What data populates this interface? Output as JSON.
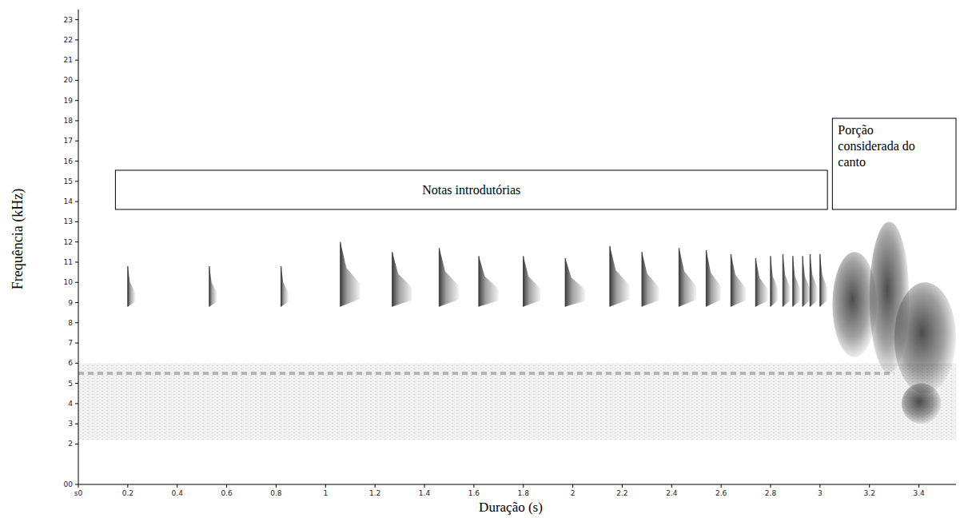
{
  "chart_data": {
    "type": "spectrogram",
    "x_label": "Duração (s)",
    "y_label": "Frequência (kHz)",
    "xlim": [
      0,
      3.55
    ],
    "ylim": [
      0,
      23.5
    ],
    "xticks": [
      {
        "value": 0,
        "label": "s0"
      },
      0.2,
      0.4,
      0.6,
      0.8,
      1,
      1.2,
      1.4,
      1.6,
      1.8,
      2,
      2.2,
      2.4,
      2.6,
      2.8,
      3,
      3.2,
      3.4
    ],
    "yticks": [
      {
        "value": 0,
        "label": "00"
      },
      2,
      3,
      4,
      5,
      6,
      7,
      8,
      9,
      10,
      11,
      12,
      13,
      14,
      15,
      16,
      17,
      18,
      19,
      20,
      21,
      22,
      23
    ],
    "color": "#2e2e2e",
    "notes": [
      {
        "time": 0.2,
        "low": 8.8,
        "high": 10.8,
        "duration": 0.03
      },
      {
        "time": 0.53,
        "low": 8.8,
        "high": 10.8,
        "duration": 0.03
      },
      {
        "time": 0.82,
        "low": 8.8,
        "high": 10.8,
        "duration": 0.03
      },
      {
        "time": 1.06,
        "low": 8.8,
        "high": 12,
        "duration": 0.08
      },
      {
        "time": 1.27,
        "low": 8.8,
        "high": 11.5,
        "duration": 0.08
      },
      {
        "time": 1.46,
        "low": 8.8,
        "high": 11.7,
        "duration": 0.08
      },
      {
        "time": 1.62,
        "low": 8.8,
        "high": 11.3,
        "duration": 0.08
      },
      {
        "time": 1.8,
        "low": 8.8,
        "high": 11.3,
        "duration": 0.07
      },
      {
        "time": 1.97,
        "low": 8.8,
        "high": 11.2,
        "duration": 0.08
      },
      {
        "time": 2.15,
        "low": 8.8,
        "high": 11.8,
        "duration": 0.08
      },
      {
        "time": 2.28,
        "low": 8.8,
        "high": 11.5,
        "duration": 0.07
      },
      {
        "time": 2.43,
        "low": 8.8,
        "high": 11.7,
        "duration": 0.07
      },
      {
        "time": 2.54,
        "low": 8.8,
        "high": 11.6,
        "duration": 0.06
      },
      {
        "time": 2.64,
        "low": 8.8,
        "high": 11.4,
        "duration": 0.06
      },
      {
        "time": 2.74,
        "low": 8.8,
        "high": 11.2,
        "duration": 0.05
      },
      {
        "time": 2.8,
        "low": 8.8,
        "high": 11.3,
        "duration": 0.03
      },
      {
        "time": 2.85,
        "low": 8.8,
        "high": 11.4,
        "duration": 0.03
      },
      {
        "time": 2.89,
        "low": 8.8,
        "high": 11.3,
        "duration": 0.03
      },
      {
        "time": 2.93,
        "low": 8.8,
        "high": 11.3,
        "duration": 0.03
      },
      {
        "time": 2.96,
        "low": 8.8,
        "high": 11.4,
        "duration": 0.03
      },
      {
        "time": 3,
        "low": 8.8,
        "high": 11.4,
        "duration": 0.03
      }
    ],
    "song_elements": [
      {
        "start": 3.05,
        "end": 3.23,
        "low": 6.3,
        "high": 11.5
      },
      {
        "start": 3.2,
        "end": 3.36,
        "low": 5.5,
        "high": 13
      },
      {
        "start": 3.3,
        "end": 3.55,
        "low": 4.5,
        "high": 10
      },
      {
        "start": 3.33,
        "end": 3.49,
        "low": 3,
        "high": 5
      }
    ],
    "background_noise": {
      "low": 2.2,
      "high": 6
    },
    "noise_band": {
      "frequency": 5.5,
      "start": 0,
      "end": 3.3
    },
    "line_style": "dashed",
    "annotations": [
      {
        "text": "Notas introdutórias",
        "start": 0.15,
        "end": 3.03
      },
      {
        "text": "Porção considerada do canto",
        "start": 3.05,
        "end": 3.55
      }
    ]
  }
}
